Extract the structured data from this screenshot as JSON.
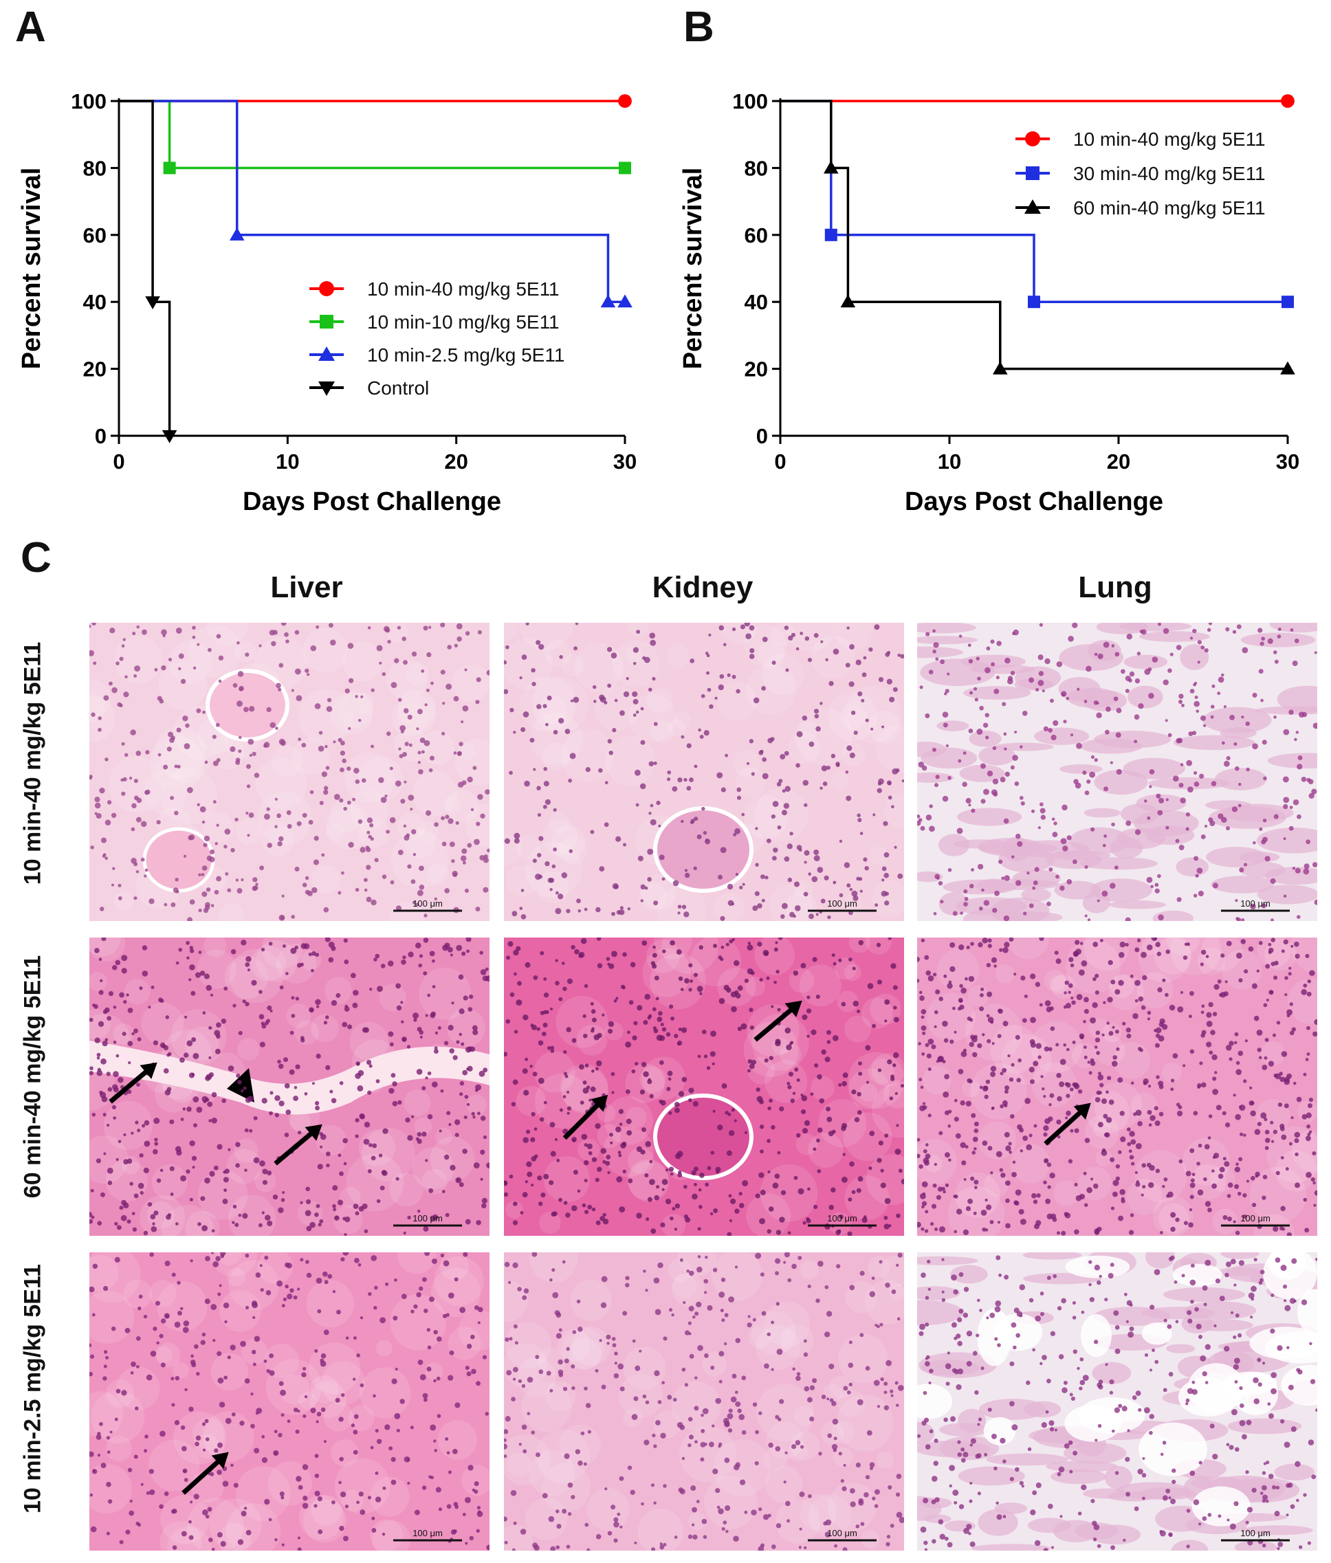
{
  "panels": {
    "a": "A",
    "b": "B",
    "c": "C"
  },
  "chart_data": [
    {
      "type": "line",
      "subtype": "kaplan-meier step",
      "panel": "A",
      "ylabel": "Percent survival",
      "xlabel": "Days Post Challenge",
      "xlim": [
        0,
        30
      ],
      "ylim": [
        0,
        100
      ],
      "xticks": [
        0,
        10,
        20,
        30
      ],
      "yticks": [
        0,
        20,
        40,
        60,
        80,
        100
      ],
      "legend_position": "center-right",
      "series": [
        {
          "name": "10 min-40 mg/kg 5E11",
          "color": "#ff0000",
          "marker": "circle",
          "x": [
            0,
            30
          ],
          "y": [
            100,
            100
          ],
          "marked": [
            [
              30,
              100
            ]
          ]
        },
        {
          "name": "10 min-10 mg/kg 5E11",
          "color": "#19c219",
          "marker": "square",
          "x": [
            0,
            3,
            30
          ],
          "y": [
            100,
            80,
            80
          ],
          "marked": [
            [
              3,
              80
            ],
            [
              30,
              80
            ]
          ]
        },
        {
          "name": "10 min-2.5 mg/kg 5E11",
          "color": "#1f2fe0",
          "marker": "triangle-up",
          "x": [
            0,
            7,
            29,
            30
          ],
          "y": [
            100,
            60,
            40,
            40
          ],
          "marked": [
            [
              7,
              60
            ],
            [
              29,
              40
            ],
            [
              30,
              40
            ]
          ]
        },
        {
          "name": "Control",
          "color": "#000000",
          "marker": "triangle-down",
          "x": [
            0,
            2,
            3
          ],
          "y": [
            100,
            40,
            0
          ],
          "marked": [
            [
              2,
              40
            ],
            [
              3,
              0
            ]
          ]
        }
      ]
    },
    {
      "type": "line",
      "subtype": "kaplan-meier step",
      "panel": "B",
      "ylabel": "Percent survival",
      "xlabel": "Days Post Challenge",
      "xlim": [
        0,
        30
      ],
      "ylim": [
        0,
        100
      ],
      "xticks": [
        0,
        10,
        20,
        30
      ],
      "yticks": [
        0,
        20,
        40,
        60,
        80,
        100
      ],
      "legend_position": "top-right",
      "series": [
        {
          "name": "10 min-40 mg/kg 5E11",
          "color": "#ff0000",
          "marker": "circle",
          "x": [
            0,
            30
          ],
          "y": [
            100,
            100
          ],
          "marked": [
            [
              30,
              100
            ]
          ]
        },
        {
          "name": "30 min-40 mg/kg 5E11",
          "color": "#1f2fe0",
          "marker": "square",
          "x": [
            0,
            3,
            15,
            30
          ],
          "y": [
            100,
            60,
            40,
            40
          ],
          "marked": [
            [
              3,
              60
            ],
            [
              15,
              40
            ],
            [
              30,
              40
            ]
          ]
        },
        {
          "name": "60 min-40 mg/kg 5E11",
          "color": "#000000",
          "marker": "triangle-up",
          "x": [
            0,
            3,
            4,
            13,
            30
          ],
          "y": [
            100,
            80,
            40,
            20,
            20
          ],
          "marked": [
            [
              3,
              80
            ],
            [
              4,
              40
            ],
            [
              13,
              20
            ],
            [
              30,
              20
            ]
          ]
        }
      ]
    }
  ],
  "histology": {
    "columns": [
      "Liver",
      "Kidney",
      "Lung"
    ],
    "rows": [
      "10 min-40 mg/kg 5E11",
      "60 min-40 mg/kg 5E11",
      "10 min-2.5 mg/kg 5E11"
    ],
    "scale_bar": "100 μm"
  },
  "colors": {
    "tissue_light": "#f3c9de",
    "tissue_dense": "#e86aa8",
    "nuclei": "#8a2d7e",
    "background_lung": "#efe6ee"
  }
}
